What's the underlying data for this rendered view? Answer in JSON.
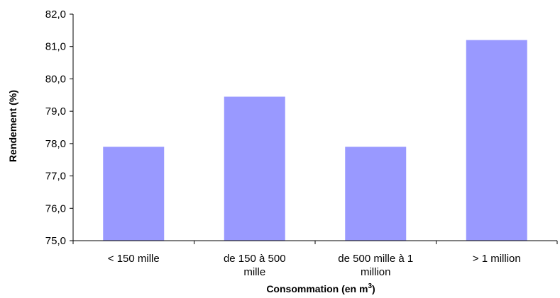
{
  "chart_data": {
    "type": "bar",
    "title": "",
    "xlabel": "Consommation (en m",
    "xlabel_sup": "3",
    "xlabel_close": ")",
    "ylabel": "Rendement (%)",
    "categories": [
      [
        "< 150 mille"
      ],
      [
        "de 150 à 500",
        "mille"
      ],
      [
        "de 500 mille à 1",
        "million"
      ],
      [
        "> 1 million"
      ]
    ],
    "values": [
      77.9,
      79.45,
      77.9,
      81.2
    ],
    "ylim": [
      75.0,
      82.0
    ],
    "yticks": [
      "75,0",
      "76,0",
      "77,0",
      "78,0",
      "79,0",
      "80,0",
      "81,0",
      "82,0"
    ],
    "grid": false,
    "bar_color": "#9999ff",
    "axis_color": "#000000"
  }
}
